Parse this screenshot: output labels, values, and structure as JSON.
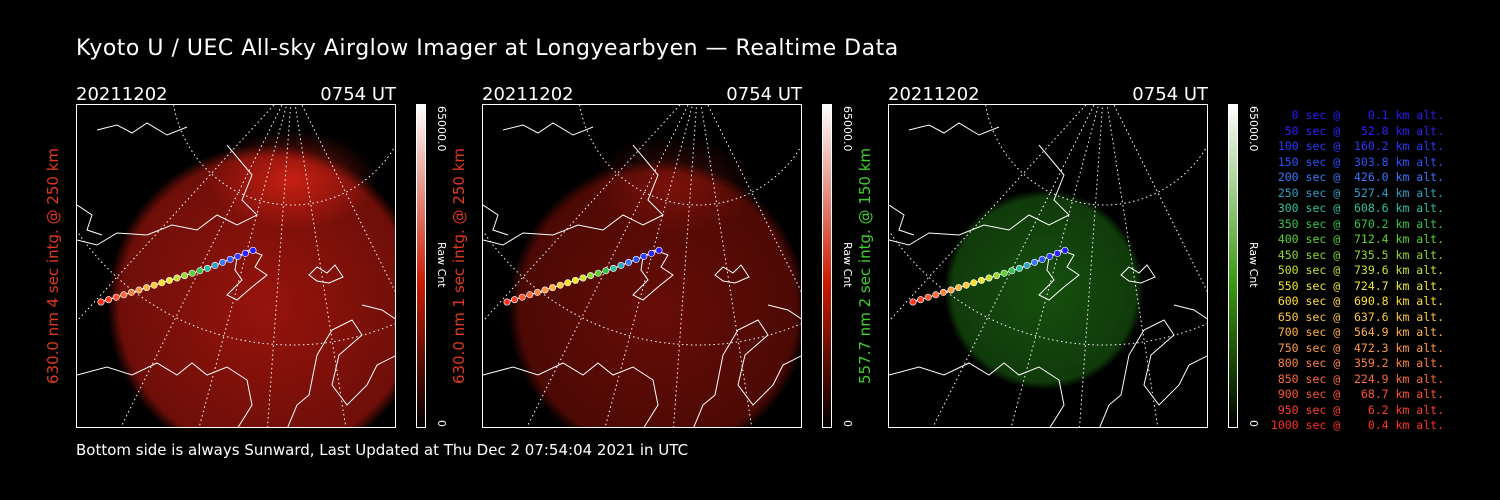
{
  "title": "Kyoto U / UEC All-sky Airglow Imager at Longyearbyen — Realtime Data",
  "footer": "Bottom side is always Sunward, Last Updated at Thu Dec  2 07:54:04 2021 in UTC",
  "panels": [
    {
      "date": "20211202",
      "time": "0754 UT",
      "vlabel": "630.0 nm 4 sec intg. @ 250 km",
      "label_color": "#e03a1e",
      "cbar_max": "65000.0",
      "cbar_unit": "Raw Cnt",
      "cbar_min": "0",
      "glow": "#c81a10",
      "cbar_top": "#ffffff",
      "cbar_bottom": "#cc1a00"
    },
    {
      "date": "20211202",
      "time": "0754 UT",
      "vlabel": "630.0 nm 1 sec intg. @ 250 km",
      "label_color": "#e03a1e",
      "cbar_max": "65000.0",
      "cbar_unit": "Raw Cnt",
      "cbar_min": "0",
      "glow": "#8a1008",
      "cbar_top": "#ffffff",
      "cbar_bottom": "#cc1a00"
    },
    {
      "date": "20211202",
      "time": "0754 UT",
      "vlabel": "557.7 nm 2 sec intg. @ 150 km",
      "label_color": "#3fcf2a",
      "cbar_max": "65000.0",
      "cbar_unit": "Raw Cnt",
      "cbar_min": "0",
      "glow": "#1d6a12",
      "cbar_top": "#ffffff",
      "cbar_bottom": "#3a9a10"
    }
  ],
  "legend": [
    {
      "text": "   0 sec @    0.1 km alt.",
      "color": "#2a1aff"
    },
    {
      "text": "  50 sec @   52.0 km alt.",
      "color": "#3020ff"
    },
    {
      "text": " 100 sec @  160.2 km alt.",
      "color": "#2a3aff"
    },
    {
      "text": " 150 sec @  303.8 km alt.",
      "color": "#2a55ff"
    },
    {
      "text": " 200 sec @  426.0 km alt.",
      "color": "#3a78ff"
    },
    {
      "text": " 250 sec @  527.4 km alt.",
      "color": "#30a0c8"
    },
    {
      "text": " 300 sec @  608.6 km alt.",
      "color": "#2ec0a0"
    },
    {
      "text": " 350 sec @  670.2 km alt.",
      "color": "#34c64a"
    },
    {
      "text": " 400 sec @  712.4 km alt.",
      "color": "#5ad232"
    },
    {
      "text": " 450 sec @  735.5 km alt.",
      "color": "#92d830"
    },
    {
      "text": " 500 sec @  739.6 km alt.",
      "color": "#c8e030"
    },
    {
      "text": " 550 sec @  724.7 km alt.",
      "color": "#f0e830"
    },
    {
      "text": " 600 sec @  690.8 km alt.",
      "color": "#ffe030"
    },
    {
      "text": " 650 sec @  637.6 km alt.",
      "color": "#ffc83a"
    },
    {
      "text": " 700 sec @  564.9 km alt.",
      "color": "#ffb040"
    },
    {
      "text": " 750 sec @  472.3 km alt.",
      "color": "#ff9a40"
    },
    {
      "text": " 800 sec @  359.2 km alt.",
      "color": "#ff8040"
    },
    {
      "text": " 850 sec @  224.9 km alt.",
      "color": "#ff6a3a"
    },
    {
      "text": " 900 sec @   68.7 km alt.",
      "color": "#ff5530"
    },
    {
      "text": " 950 sec @    6.2 km alt.",
      "color": "#ff4028"
    },
    {
      "text": "1000 sec @    0.4 km alt.",
      "color": "#ff3020"
    }
  ]
}
